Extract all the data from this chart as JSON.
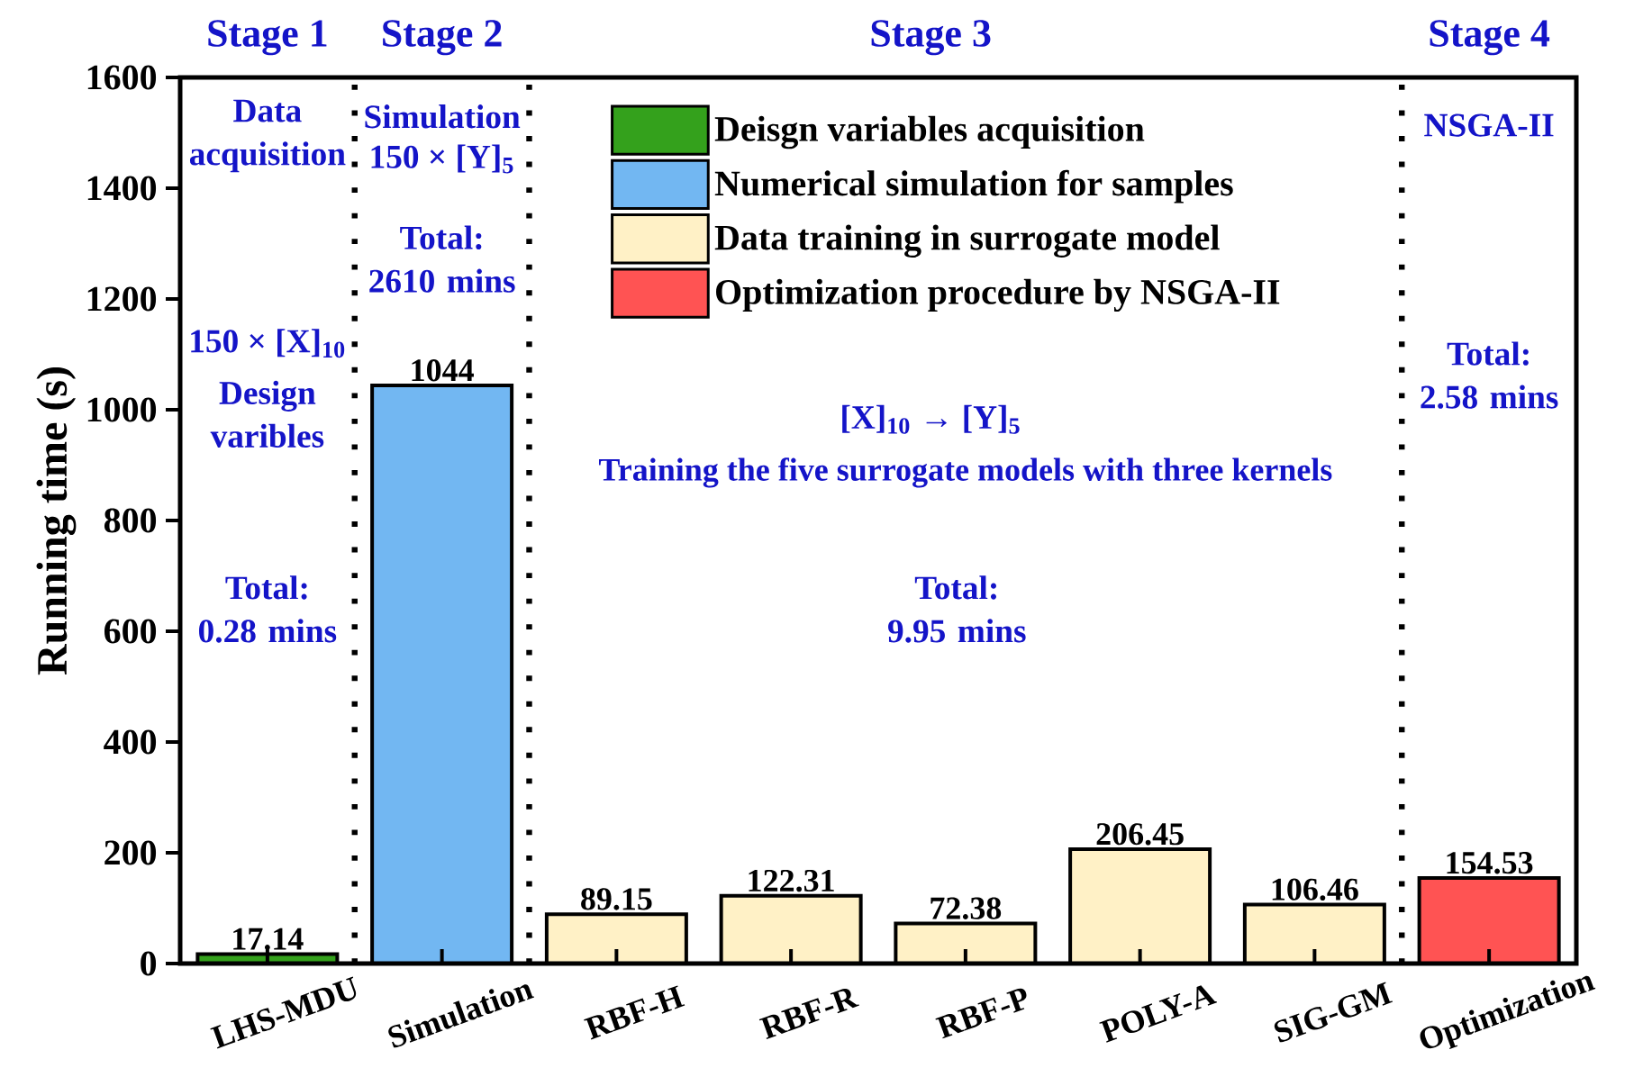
{
  "chart_data": {
    "type": "bar",
    "categories": [
      "LHS-MDU",
      "Simulation",
      "RBF-H",
      "RBF-R",
      "RBF-P",
      "POLY-A",
      "SIG-GM",
      "Optimization"
    ],
    "series": [
      {
        "name": "Deisgn variables acquisition",
        "color": "#34a11c",
        "values": [
          17.14,
          null,
          null,
          null,
          null,
          null,
          null,
          null
        ]
      },
      {
        "name": "Numerical simulation for samples",
        "color": "#72b7f2",
        "values": [
          null,
          1044,
          null,
          null,
          null,
          null,
          null,
          null
        ]
      },
      {
        "name": "Data training in surrogate model",
        "color": "#fff1c6",
        "values": [
          null,
          null,
          89.15,
          122.31,
          72.38,
          206.45,
          106.46,
          null
        ]
      },
      {
        "name": "Optimization procedure by NSGA-II",
        "color": "#ff5353",
        "values": [
          null,
          null,
          null,
          null,
          null,
          null,
          null,
          154.53
        ]
      }
    ],
    "ylabel": "Running time (s)",
    "ylim": [
      0,
      1600
    ],
    "yticks": [
      0,
      200,
      400,
      600,
      800,
      1000,
      1200,
      1400,
      1600
    ],
    "data_labels": true,
    "legend": "top",
    "annotations": [
      "Stage 1",
      "Stage 2",
      "Stage 3",
      "Stage 4",
      "Data acquisition",
      "150 × [X]$_{10}$",
      "Design varibles",
      "Total: 0.28 mins",
      "Simulation",
      "150 × [Y]$_{5}$",
      "Total: 2610 mins",
      "[X]$_{10}$ → [Y]$_{5}$",
      "Training the five surrogate models with three kernels",
      "Total: 9.95 mins",
      "NSGA-II",
      "Total: 2.58 mins"
    ]
  }
}
